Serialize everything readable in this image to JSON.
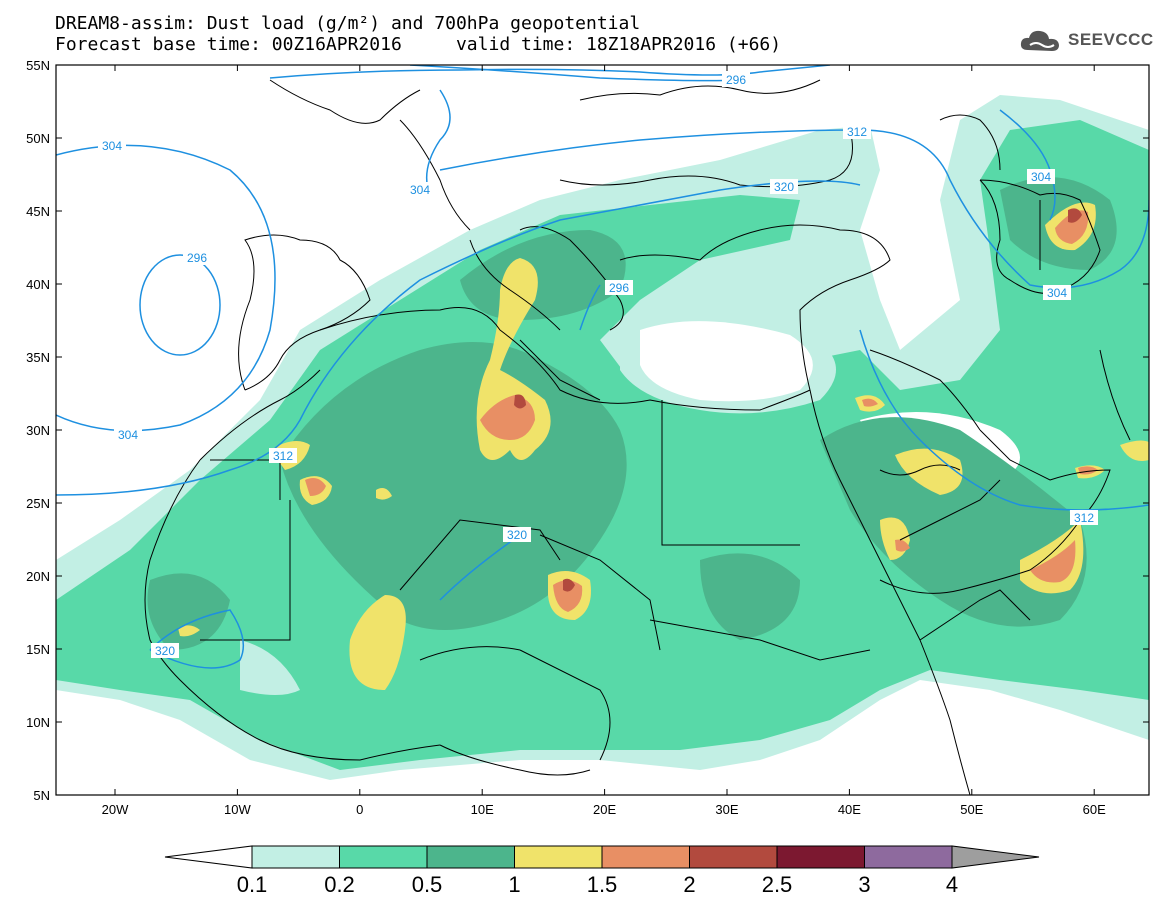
{
  "header": {
    "title_line1": "DREAM8-assim: Dust load (g/m²) and 700hPa geopotential",
    "title_line2": "Forecast base time: 00Z16APR2016     valid time: 18Z18APR2016 (+66)"
  },
  "logo": {
    "text": "SEEVCCC",
    "icon": "cloud-icon"
  },
  "axes": {
    "lat_labels": [
      "55N",
      "50N",
      "45N",
      "40N",
      "35N",
      "30N",
      "25N",
      "20N",
      "15N",
      "10N",
      "5N"
    ],
    "lon_labels": [
      "20W",
      "10W",
      "0",
      "10E",
      "20E",
      "30E",
      "40E",
      "50E",
      "60E"
    ]
  },
  "contour_labels": [
    "296",
    "304",
    "304",
    "296",
    "304",
    "312",
    "320",
    "296",
    "304",
    "304",
    "312",
    "320",
    "312",
    "320"
  ],
  "colorbar": {
    "labels": [
      "0.1",
      "0.2",
      "0.5",
      "1",
      "1.5",
      "2",
      "2.5",
      "3",
      "4"
    ],
    "colors": [
      "#ffffff",
      "#c2efe4",
      "#58d9a8",
      "#4cb58c",
      "#f0e36a",
      "#e88f64",
      "#b24a3e",
      "#7c1830",
      "#8e6a9e",
      "#9e9e9e"
    ]
  },
  "map": {
    "background": "#ffffff",
    "contour_color": "#1e90e0",
    "dust_levels": {
      "light": "#c2efe4",
      "low": "#58d9a8",
      "mid": "#4cb58c",
      "yellow": "#f0e36a",
      "orange": "#e88f64",
      "red": "#b24a3e"
    }
  }
}
